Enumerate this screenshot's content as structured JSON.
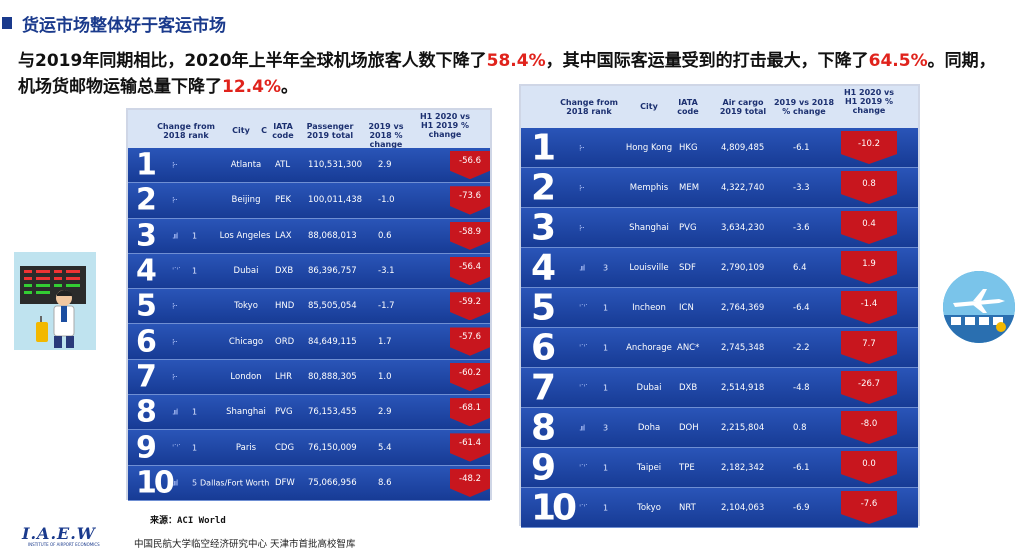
{
  "header": {
    "title": "货运市场整体好于客运市场"
  },
  "summary": {
    "part1": "与2019年同期相比，2020年上半年全球机场旅客人数下降了",
    "hl1": "58.4%",
    "part2": "，其中国际客运量受到的打击最大，下降了",
    "hl2": "64.5%",
    "part3": "。同期，机场货邮物运输总量下降了",
    "hl3": "12.4%",
    "part4": "。"
  },
  "left_table": {
    "headers": {
      "change": "Change from 2018 rank",
      "city": "City",
      "city_mark": "C",
      "iata": "IATA code",
      "total": "Passenger 2019 total",
      "yoy": "2019 vs 2018 % change",
      "h1": "H1 2020 vs H1 2019 % change"
    },
    "rows": [
      {
        "rank": "1",
        "change_icon": "⁞··",
        "change": "",
        "city": "Atlanta",
        "iata": "ATL",
        "total": "110,531,300",
        "yoy": "2.9",
        "h1": "-56.6"
      },
      {
        "rank": "2",
        "change_icon": "⁞··",
        "change": "",
        "city": "Beijing",
        "iata": "PEK",
        "total": "100,011,438",
        "yoy": "-1.0",
        "h1": "-73.6"
      },
      {
        "rank": "3",
        "change_icon": ".ııl",
        "change": "1",
        "city": "Los Angeles",
        "iata": "LAX",
        "total": "88,068,013",
        "yoy": "0.6",
        "h1": "-58.9"
      },
      {
        "rank": "4",
        "change_icon": "ˈ˙ˈ˙",
        "change": "1",
        "city": "Dubai",
        "iata": "DXB",
        "total": "86,396,757",
        "yoy": "-3.1",
        "h1": "-56.4"
      },
      {
        "rank": "5",
        "change_icon": "⁞··",
        "change": "",
        "city": "Tokyo",
        "iata": "HND",
        "total": "85,505,054",
        "yoy": "-1.7",
        "h1": "-59.2"
      },
      {
        "rank": "6",
        "change_icon": "⁞··",
        "change": "",
        "city": "Chicago",
        "iata": "ORD",
        "total": "84,649,115",
        "yoy": "1.7",
        "h1": "-57.6"
      },
      {
        "rank": "7",
        "change_icon": "⁞··",
        "change": "",
        "city": "London",
        "iata": "LHR",
        "total": "80,888,305",
        "yoy": "1.0",
        "h1": "-60.2"
      },
      {
        "rank": "8",
        "change_icon": ".ııl",
        "change": "1",
        "city": "Shanghai",
        "iata": "PVG",
        "total": "76,153,455",
        "yoy": "2.9",
        "h1": "-68.1"
      },
      {
        "rank": "9",
        "change_icon": "ˈ˙ˈ˙",
        "change": "1",
        "city": "Paris",
        "iata": "CDG",
        "total": "76,150,009",
        "yoy": "5.4",
        "h1": "-61.4"
      },
      {
        "rank": "10",
        "change_icon": ".ııl",
        "change": "5",
        "city": "Dallas/Fort Worth",
        "iata": "DFW",
        "total": "75,066,956",
        "yoy": "8.6",
        "h1": "-48.2"
      }
    ]
  },
  "right_table": {
    "headers": {
      "change": "Change from 2018 rank",
      "city": "City",
      "iata": "IATA code",
      "total": "Air cargo 2019 total",
      "yoy": "2019 vs 2018 % change",
      "h1": "H1 2020 vs H1 2019 % change"
    },
    "rows": [
      {
        "rank": "1",
        "change_icon": "⁞··",
        "change": "",
        "city": "Hong Kong",
        "iata": "HKG",
        "total": "4,809,485",
        "yoy": "-6.1",
        "h1": "-10.2"
      },
      {
        "rank": "2",
        "change_icon": "⁞··",
        "change": "",
        "city": "Memphis",
        "iata": "MEM",
        "total": "4,322,740",
        "yoy": "-3.3",
        "h1": "0.8"
      },
      {
        "rank": "3",
        "change_icon": "⁞··",
        "change": "",
        "city": "Shanghai",
        "iata": "PVG",
        "total": "3,634,230",
        "yoy": "-3.6",
        "h1": "0.4"
      },
      {
        "rank": "4",
        "change_icon": ".ııl",
        "change": "3",
        "city": "Louisville",
        "iata": "SDF",
        "total": "2,790,109",
        "yoy": "6.4",
        "h1": "1.9"
      },
      {
        "rank": "5",
        "change_icon": "ˈ˙ˈ˙",
        "change": "1",
        "city": "Incheon",
        "iata": "ICN",
        "total": "2,764,369",
        "yoy": "-6.4",
        "h1": "-1.4"
      },
      {
        "rank": "6",
        "change_icon": "ˈ˙ˈ˙",
        "change": "1",
        "city": "Anchorage",
        "iata": "ANC*",
        "total": "2,745,348",
        "yoy": "-2.2",
        "h1": "7.7"
      },
      {
        "rank": "7",
        "change_icon": "ˈ˙ˈ˙",
        "change": "1",
        "city": "Dubai",
        "iata": "DXB",
        "total": "2,514,918",
        "yoy": "-4.8",
        "h1": "-26.7"
      },
      {
        "rank": "8",
        "change_icon": ".ııl",
        "change": "3",
        "city": "Doha",
        "iata": "DOH",
        "total": "2,215,804",
        "yoy": "0.8",
        "h1": "-8.0"
      },
      {
        "rank": "9",
        "change_icon": "ˈ˙ˈ˙",
        "change": "1",
        "city": "Taipei",
        "iata": "TPE",
        "total": "2,182,342",
        "yoy": "-6.1",
        "h1": "0.0"
      },
      {
        "rank": "10",
        "change_icon": "ˈ˙ˈ˙",
        "change": "1",
        "city": "Tokyo",
        "iata": "NRT",
        "total": "2,104,063",
        "yoy": "-6.9",
        "h1": "-7.6"
      }
    ]
  },
  "source": "来源：ACI World",
  "footer": {
    "logo": "I.A.E.W",
    "logo_sub": "INSTITUTE OF AIRPORT ECONOMICS",
    "text": "中国民航大学临空经济研究中心  天津市首批高校智库"
  },
  "icons": {
    "left": "traveler-departure-board-illustration",
    "right": "airport-circle-illustration"
  }
}
